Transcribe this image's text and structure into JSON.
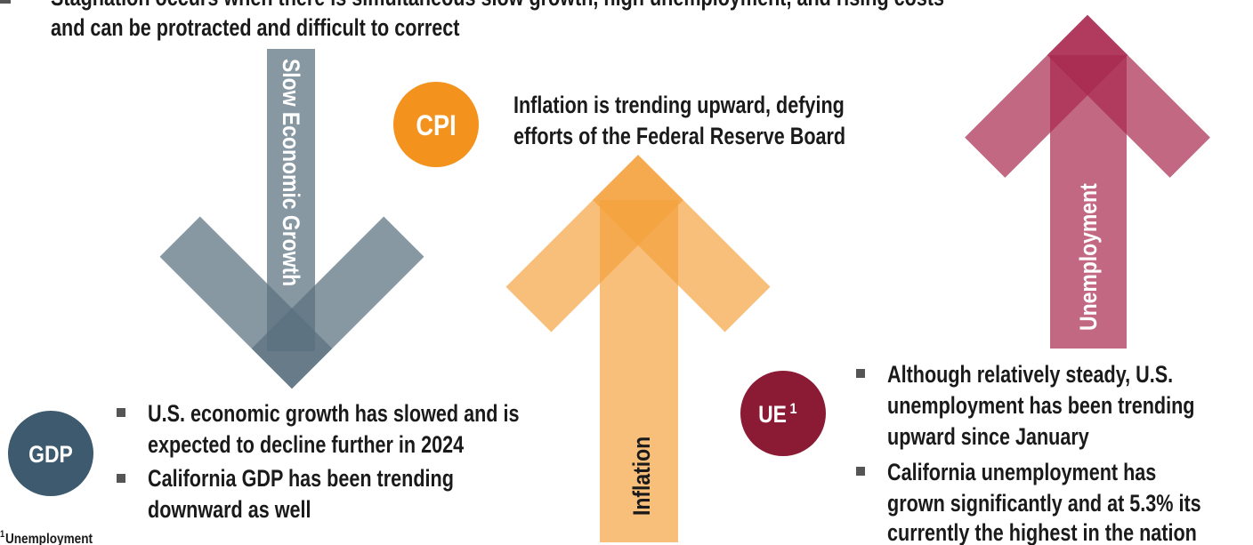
{
  "intro": {
    "lines": [
      "Stagnation occurs when there is simultaneous slow growth, high unemployment, and rising costs",
      "and can be protracted and difficult to correct"
    ]
  },
  "arrows": [
    {
      "label": "Slow Economic Growth"
    },
    {
      "label": "Inflation"
    },
    {
      "label": "Unemployment"
    }
  ],
  "cpi": {
    "badge": "CPI",
    "lines": [
      "Inflation is trending upward, defying",
      "efforts of the Federal Reserve Board"
    ]
  },
  "gdp": {
    "badge": "GDP",
    "bullets": [
      [
        "U.S. economic growth has slowed and is",
        "expected to decline further in 2024"
      ],
      [
        "California GDP has been trending",
        "downward as well"
      ]
    ]
  },
  "ue": {
    "badge": "UE",
    "sup": "1",
    "bullets": [
      [
        "Although relatively steady, U.S.",
        "unemployment has been trending",
        "upward since January"
      ],
      [
        "California unemployment has",
        "grown significantly and at 5.3% its",
        "currently the highest in the nation"
      ]
    ]
  },
  "footnote": {
    "marker": "1",
    "text": "Unemployment"
  }
}
